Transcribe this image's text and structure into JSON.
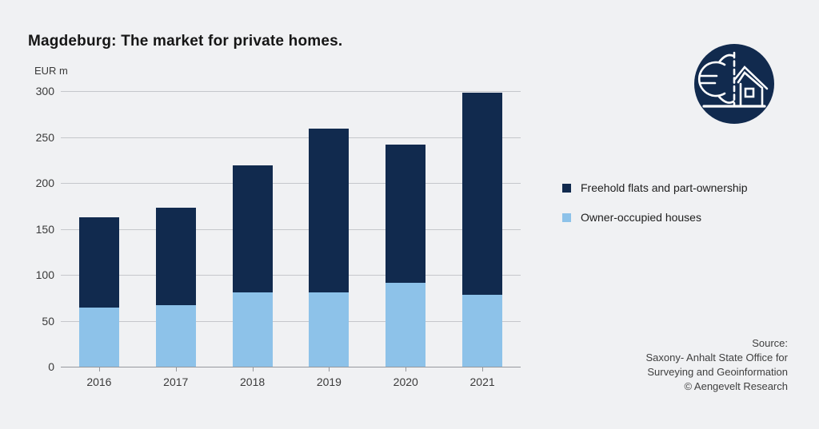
{
  "title": "Magdeburg: The market for private homes.",
  "colors": {
    "background": "#f0f1f3",
    "navy": "#112a4e",
    "light_blue": "#8dc2e9",
    "gridline": "#c5c7cb",
    "axis_line": "#96989d"
  },
  "chart_data": {
    "type": "bar",
    "stacked": true,
    "title": "Magdeburg: The market for private homes.",
    "unit_label": "EUR m",
    "categories": [
      "2016",
      "2017",
      "2018",
      "2019",
      "2020",
      "2021"
    ],
    "series": [
      {
        "name": "Owner-occupied houses",
        "color": "#8dc2e9",
        "values": [
          64,
          67,
          81,
          81,
          91,
          78
        ]
      },
      {
        "name": "Freehold flats and part-ownership",
        "color": "#112a4e",
        "values": [
          99,
          106,
          138,
          178,
          151,
          220
        ]
      }
    ],
    "totals": [
      163,
      173,
      219,
      259,
      242,
      298
    ],
    "ylim": [
      0,
      300
    ],
    "yticks": [
      0,
      50,
      100,
      150,
      200,
      250,
      300
    ],
    "grid": true,
    "legend_position": "right"
  },
  "legend": {
    "items": [
      {
        "label": "Freehold flats and part-ownership",
        "color": "#112a4e"
      },
      {
        "label": "Owner-occupied houses",
        "color": "#8dc2e9"
      }
    ]
  },
  "source": {
    "lines": [
      "Source:",
      "Saxony- Anhalt State Office for",
      "Surveying and Geoinformation",
      "© Aengevelt Research"
    ]
  },
  "logo": {
    "name": "euro-house-logo"
  }
}
